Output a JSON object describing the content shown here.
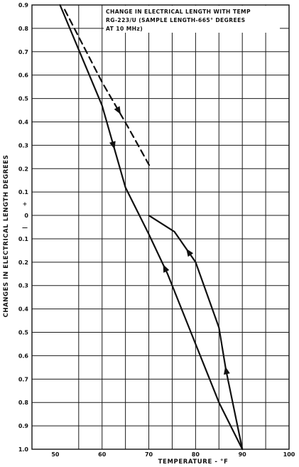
{
  "chart_data": {
    "type": "line",
    "title_lines": [
      "CHANGE IN ELECTRICAL LENGTH WITH TEMP",
      "RG-223/U (SAMPLE LENGTH-665° DEGREES",
      "AT 10 MHz)"
    ],
    "xlabel": "TEMPERATURE - °F",
    "ylabel": "CHANGES IN ELECTRICAL LENGTH DEGREES",
    "xlim": [
      45,
      100
    ],
    "ylim": [
      -1.0,
      0.9
    ],
    "x_ticks": [
      {
        "value": 50,
        "label": "50"
      },
      {
        "value": 60,
        "label": "60"
      },
      {
        "value": 70,
        "label": "70"
      },
      {
        "value": 80,
        "label": "80"
      },
      {
        "value": 90,
        "label": "90"
      },
      {
        "value": 100,
        "label": "100"
      }
    ],
    "y_ticks": [
      {
        "value": 0.9,
        "label": "0.9"
      },
      {
        "value": 0.8,
        "label": "0.8"
      },
      {
        "value": 0.7,
        "label": "0.7"
      },
      {
        "value": 0.6,
        "label": "0.6"
      },
      {
        "value": 0.5,
        "label": "0.5"
      },
      {
        "value": 0.4,
        "label": "0.4"
      },
      {
        "value": 0.3,
        "label": "0.3"
      },
      {
        "value": 0.2,
        "label": "0.2"
      },
      {
        "value": 0.1,
        "label": "0.1"
      },
      {
        "value": 0.0,
        "label": "0"
      },
      {
        "value": -0.1,
        "label": "0.1"
      },
      {
        "value": -0.2,
        "label": "0.2"
      },
      {
        "value": -0.3,
        "label": "0.3"
      },
      {
        "value": -0.4,
        "label": "0.4"
      },
      {
        "value": -0.5,
        "label": "0.5"
      },
      {
        "value": -0.6,
        "label": "0.6"
      },
      {
        "value": -0.7,
        "label": "0.7"
      },
      {
        "value": -0.8,
        "label": "0.8"
      },
      {
        "value": -0.9,
        "label": "0.9"
      },
      {
        "value": -1.0,
        "label": "1.0"
      }
    ],
    "sign_labels": {
      "plus": "+",
      "minus": "—"
    },
    "grid": true,
    "series": [
      {
        "style": "solid",
        "points": [
          [
            51,
            0.9
          ],
          [
            60,
            0.47
          ],
          [
            65,
            0.12
          ],
          [
            70,
            -0.08
          ],
          [
            74,
            -0.25
          ],
          [
            80,
            -0.55
          ],
          [
            85,
            -0.8
          ],
          [
            90,
            -1.0
          ]
        ],
        "arrows": [
          [
            63,
            0.3,
            "down"
          ],
          [
            73.7,
            -0.22,
            "up"
          ]
        ]
      },
      {
        "style": "solid",
        "points": [
          [
            90,
            -1.0
          ],
          [
            86.5,
            -0.66
          ],
          [
            85,
            -0.48
          ],
          [
            80,
            -0.2
          ],
          [
            75.5,
            -0.07
          ],
          [
            70,
            0.0
          ]
        ],
        "arrows": [
          [
            86.6,
            -0.66,
            "up"
          ],
          [
            78,
            -0.16,
            "up"
          ]
        ]
      },
      {
        "style": "dashed",
        "points": [
          [
            52,
            0.88
          ],
          [
            60,
            0.57
          ],
          [
            65.5,
            0.38
          ],
          [
            70.5,
            0.2
          ]
        ],
        "arrows": [
          [
            63.2,
            0.44,
            "down"
          ]
        ]
      }
    ]
  }
}
